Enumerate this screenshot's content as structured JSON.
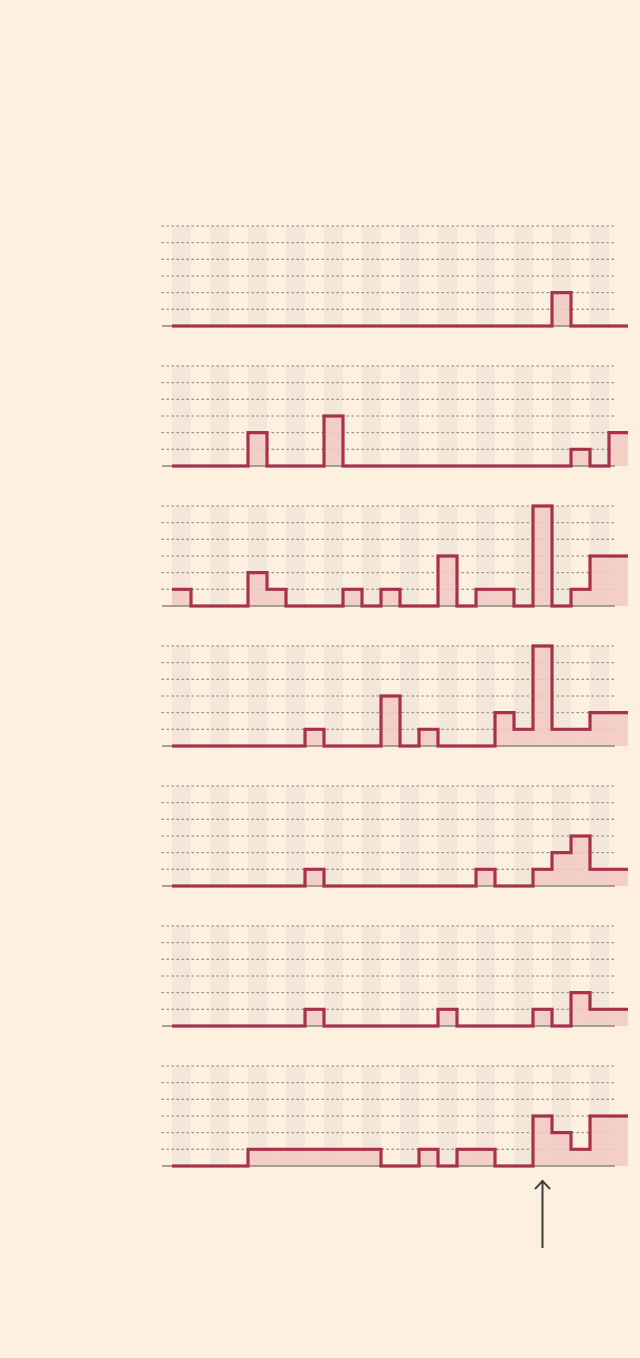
{
  "colors": {
    "background": "#fdf0df",
    "line": "#a8324d",
    "fill": "#f1c9c2",
    "stripe": "#f3e7da",
    "grid": "#9a948e",
    "baseline": "#8a8580",
    "arrow": "#3c3c3c"
  },
  "chart_data": {
    "type": "area",
    "step": true,
    "small_multiples": true,
    "title": "",
    "xlabel": "",
    "ylabel": "",
    "ylim": [
      0,
      6
    ],
    "grid": true,
    "x": [
      1,
      2,
      3,
      4,
      5,
      6,
      7,
      8,
      9,
      10,
      11,
      12,
      13,
      14,
      15,
      16,
      17,
      18,
      19,
      20,
      21,
      22,
      23,
      24
    ],
    "highlight_x": 20,
    "annotation_icon": "arrow-up-icon",
    "series": [
      {
        "values": [
          0,
          0,
          0,
          0,
          0,
          0,
          0,
          0,
          0,
          0,
          0,
          0,
          0,
          0,
          0,
          0,
          0,
          0,
          0,
          0,
          2,
          0,
          0,
          0
        ]
      },
      {
        "values": [
          0,
          0,
          0,
          0,
          2,
          0,
          0,
          0,
          3,
          0,
          0,
          0,
          0,
          0,
          0,
          0,
          0,
          0,
          0,
          0,
          0,
          1,
          0,
          2
        ]
      },
      {
        "values": [
          1,
          0,
          0,
          0,
          2,
          1,
          0,
          0,
          0,
          1,
          0,
          1,
          0,
          0,
          3,
          0,
          1,
          1,
          0,
          6,
          0,
          1,
          3,
          3
        ]
      },
      {
        "values": [
          0,
          0,
          0,
          0,
          0,
          0,
          0,
          1,
          0,
          0,
          0,
          3,
          0,
          1,
          0,
          0,
          0,
          2,
          1,
          6,
          1,
          1,
          2,
          2
        ]
      },
      {
        "values": [
          0,
          0,
          0,
          0,
          0,
          0,
          0,
          1,
          0,
          0,
          0,
          0,
          0,
          0,
          0,
          0,
          1,
          0,
          0,
          1,
          2,
          3,
          1,
          1
        ]
      },
      {
        "values": [
          0,
          0,
          0,
          0,
          0,
          0,
          0,
          1,
          0,
          0,
          0,
          0,
          0,
          0,
          1,
          0,
          0,
          0,
          0,
          1,
          0,
          2,
          1,
          1
        ]
      },
      {
        "values": [
          0,
          0,
          0,
          0,
          1,
          1,
          1,
          1,
          1,
          1,
          1,
          0,
          0,
          1,
          0,
          1,
          1,
          0,
          0,
          3,
          2,
          1,
          3,
          3
        ]
      }
    ]
  }
}
